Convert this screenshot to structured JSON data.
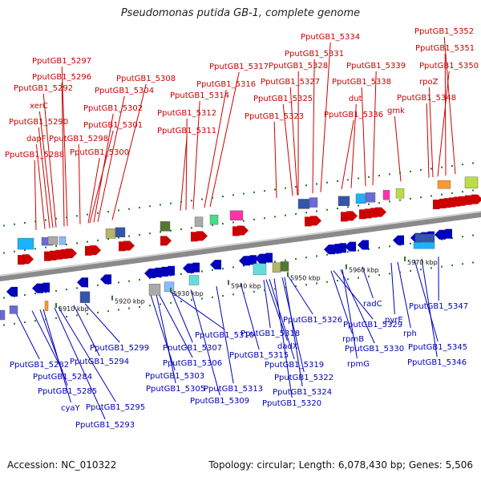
{
  "title": "Pseudomonas putida GB-1, complete genome",
  "footer": {
    "accession": "Accession: NC_010322",
    "topology": "Topology: circular; Length: 6,078,430 bp; Genes: 5,506"
  },
  "colors": {
    "forward": "#cc0000",
    "reverse": "#0000bb",
    "backbone": "#888888"
  },
  "ticks": [
    "5910 kbp",
    "5920 kbp",
    "5930 kbp",
    "5940 kbp",
    "5950 kbp",
    "5960 kbp",
    "5970 kbp"
  ],
  "forward_labels": [
    "PputGB1_5288",
    "dapF",
    "PputGB1_5290",
    "xerC",
    "PputGB1_5292",
    "PputGB1_5296",
    "PputGB1_5297",
    "PputGB1_5298",
    "PputGB1_5300",
    "PputGB1_5301",
    "PputGB1_5302",
    "PputGB1_5304",
    "PputGB1_5308",
    "PputGB1_5311",
    "PputGB1_5312",
    "PputGB1_5314",
    "PputGB1_5316",
    "PputGB1_5317",
    "PputGB1_5323",
    "PputGB1_5325",
    "PputGB1_5327",
    "PputGB1_5328",
    "PputGB1_5331",
    "PputGB1_5334",
    "PputGB1_5336",
    "dut",
    "PputGB1_5338",
    "PputGB1_5339",
    "gmk",
    "PputGB1_5348",
    "rpoZ",
    "PputGB1_5350",
    "PputGB1_5351",
    "PputGB1_5352"
  ],
  "reverse_labels": [
    "PputGB1_5282",
    "PputGB1_5284",
    "PputGB1_5285",
    "cyaY",
    "PputGB1_5293",
    "PputGB1_5294",
    "PputGB1_5295",
    "PputGB1_5299",
    "PputGB1_5303",
    "PputGB1_5305",
    "PputGB1_5306",
    "PputGB1_5307",
    "PputGB1_5309",
    "PputGB1_5310",
    "PputGB1_5313",
    "PputGB1_5315",
    "PputGB1_5318",
    "dadX",
    "PputGB1_5319",
    "PputGB1_5320",
    "PputGB1_5322",
    "PputGB1_5324",
    "PputGB1_5326",
    "rpmB",
    "PputGB1_5329",
    "PputGB1_5330",
    "rpmG",
    "radC",
    "pyrE",
    "rph",
    "PputGB1_5345",
    "PputGB1_5346",
    "PputGB1_5347"
  ]
}
